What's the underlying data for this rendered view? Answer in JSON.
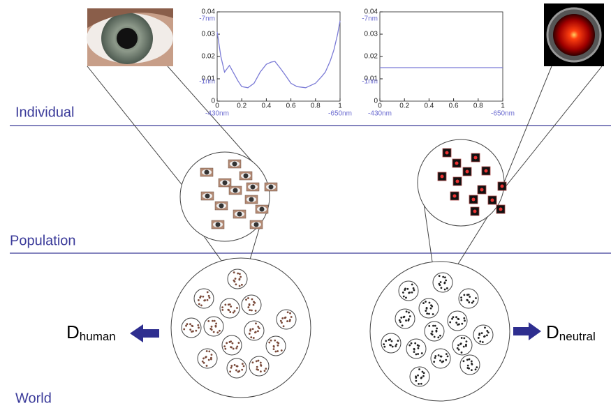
{
  "labels": {
    "individual": "Individual",
    "population": "Population",
    "world": "World"
  },
  "d_human": {
    "letter": "D",
    "subscript": "human"
  },
  "d_neutral": {
    "letter": "D",
    "subscript": "neutral"
  },
  "chart_data": [
    {
      "type": "line",
      "x": [
        0,
        0.03,
        0.06,
        0.1,
        0.13,
        0.17,
        0.2,
        0.25,
        0.3,
        0.35,
        0.4,
        0.44,
        0.47,
        0.51,
        0.55,
        0.6,
        0.65,
        0.72,
        0.8,
        0.85,
        0.88,
        0.92,
        0.95,
        0.98,
        1
      ],
      "series": [
        {
          "color": "#7b7bd6",
          "values": [
            0.031,
            0.02,
            0.013,
            0.016,
            0.013,
            0.009,
            0.0065,
            0.006,
            0.008,
            0.013,
            0.0165,
            0.0175,
            0.0178,
            0.015,
            0.012,
            0.008,
            0.0065,
            0.006,
            0.008,
            0.011,
            0.013,
            0.018,
            0.023,
            0.03,
            0.036
          ]
        }
      ],
      "xlim": [
        0,
        1
      ],
      "xticks": [
        0,
        0.2,
        0.4,
        0.6,
        0.8,
        1
      ],
      "ylim": [
        0,
        0.04
      ],
      "yticks": [
        0,
        0.01,
        0.02,
        0.03,
        0.04
      ],
      "annotations": [
        "-7nm",
        "-1nm",
        "-430nm",
        "-650nm"
      ]
    },
    {
      "type": "line",
      "x": [
        0,
        1
      ],
      "series": [
        {
          "color": "#7b7bd6",
          "values": [
            0.015,
            0.015
          ]
        }
      ],
      "xlim": [
        0,
        1
      ],
      "xticks": [
        0,
        0.2,
        0.4,
        0.6,
        0.8,
        1
      ],
      "ylim": [
        0,
        0.04
      ],
      "yticks": [
        0,
        0.01,
        0.02,
        0.03,
        0.04
      ],
      "annotations": [
        "-7nm",
        "-1nm",
        "-430nm",
        "-650nm"
      ]
    }
  ]
}
